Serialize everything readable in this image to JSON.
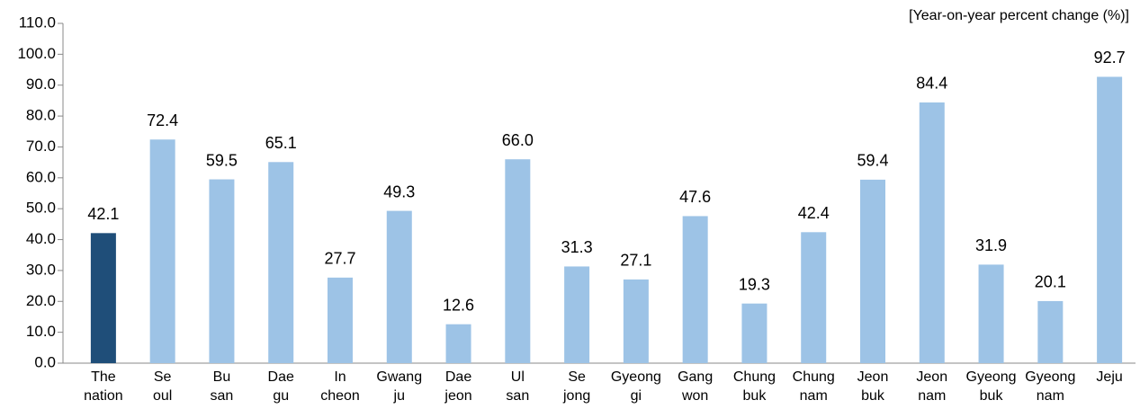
{
  "chart_data": {
    "type": "bar",
    "unit_label": "[Year-on-year percent change (%)]",
    "categories": [
      "The\nnation",
      "Se\noul",
      "Bu\nsan",
      "Dae\ngu",
      "In\ncheon",
      "Gwang\nju",
      "Dae\njeon",
      "Ul\nsan",
      "Se\njong",
      "Gyeong\ngi",
      "Gang\nwon",
      "Chung\nbuk",
      "Chung\nnam",
      "Jeon\nbuk",
      "Jeon\nnam",
      "Gyeong\nbuk",
      "Gyeong\nnam",
      "Jeju"
    ],
    "values": [
      42.1,
      72.4,
      59.5,
      65.1,
      27.7,
      49.3,
      12.6,
      66.0,
      31.3,
      27.1,
      47.6,
      19.3,
      42.4,
      59.4,
      84.4,
      31.9,
      20.1,
      92.7
    ],
    "value_labels": [
      "42.1",
      "72.4",
      "59.5",
      "65.1",
      "27.7",
      "49.3",
      "12.6",
      "66.0",
      "31.3",
      "27.1",
      "47.6",
      "19.3",
      "42.4",
      "59.4",
      "84.4",
      "31.9",
      "20.1",
      "92.7"
    ],
    "colors": [
      "#1f4e79",
      "#9dc3e6",
      "#9dc3e6",
      "#9dc3e6",
      "#9dc3e6",
      "#9dc3e6",
      "#9dc3e6",
      "#9dc3e6",
      "#9dc3e6",
      "#9dc3e6",
      "#9dc3e6",
      "#9dc3e6",
      "#9dc3e6",
      "#9dc3e6",
      "#9dc3e6",
      "#9dc3e6",
      "#9dc3e6",
      "#9dc3e6"
    ],
    "ylim": [
      0,
      110
    ],
    "yticks": [
      {
        "value": 0,
        "label": "0.0"
      },
      {
        "value": 10,
        "label": "10.0"
      },
      {
        "value": 20,
        "label": "20.0"
      },
      {
        "value": 30,
        "label": "30.0"
      },
      {
        "value": 40,
        "label": "40.0"
      },
      {
        "value": 50,
        "label": "50.0"
      },
      {
        "value": 60,
        "label": "60.0"
      },
      {
        "value": 70,
        "label": "70.0"
      },
      {
        "value": 80,
        "label": "80.0"
      },
      {
        "value": 90,
        "label": "90.0"
      },
      {
        "value": 100,
        "label": "100.0"
      },
      {
        "value": 110,
        "label": "110.0"
      }
    ],
    "grid": false
  }
}
